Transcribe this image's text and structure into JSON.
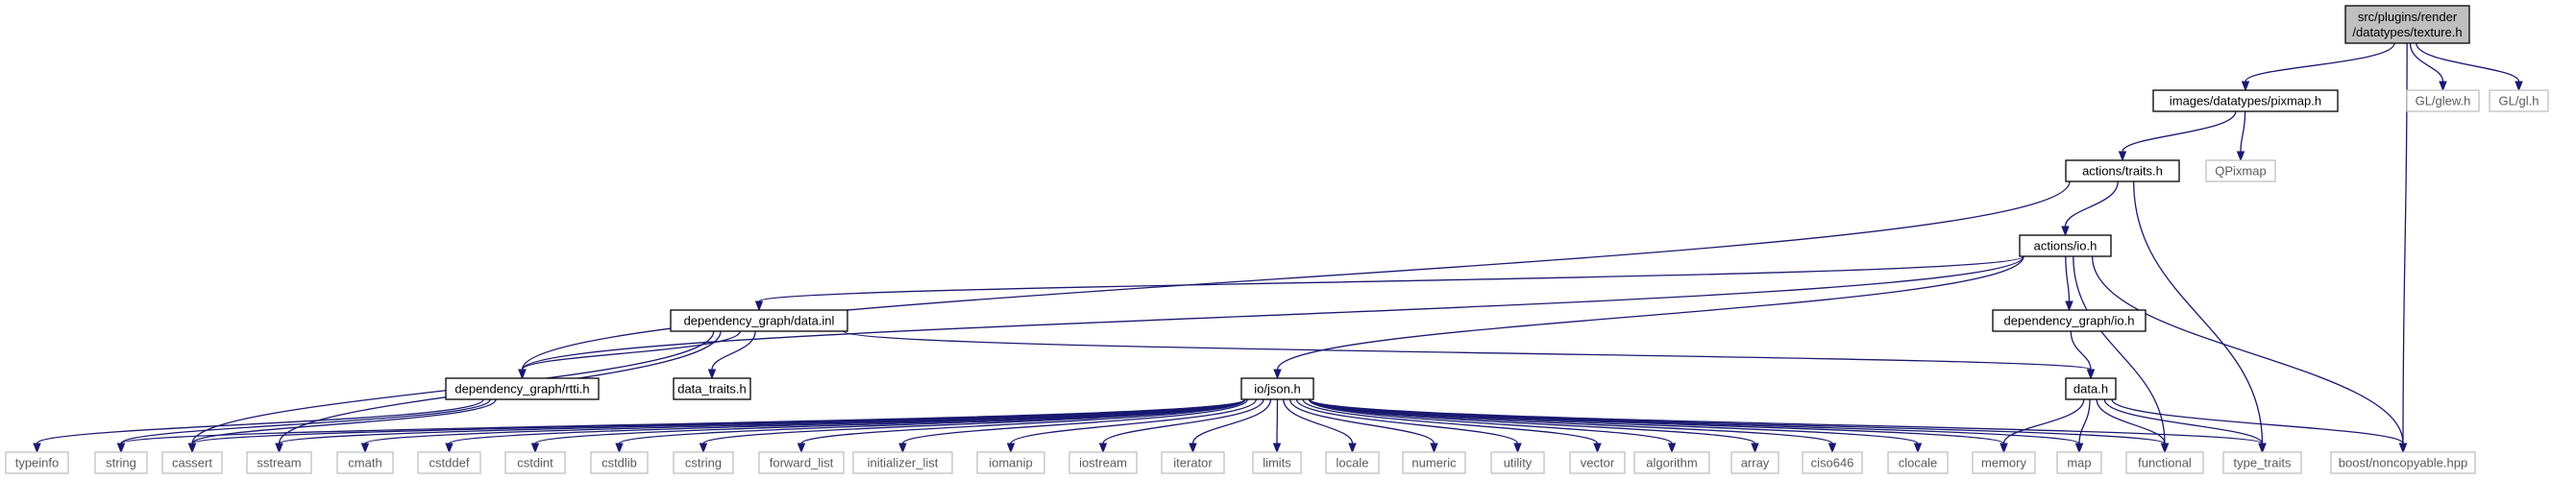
{
  "diagram": {
    "colors": {
      "edge": "#191970",
      "external_border": "#bfbfbf",
      "root_fill": "#bfbfbf",
      "node_border": "#000000"
    },
    "nodes": [
      {
        "id": "texture",
        "label": [
          "src/plugins/render",
          "/datatypes/texture.h"
        ],
        "kind": "root"
      },
      {
        "id": "pixmap",
        "label": [
          "images/datatypes/pixmap.h"
        ],
        "kind": "doc"
      },
      {
        "id": "glew",
        "label": [
          "GL/glew.h"
        ],
        "kind": "ext"
      },
      {
        "id": "gl",
        "label": [
          "GL/gl.h"
        ],
        "kind": "ext"
      },
      {
        "id": "traits",
        "label": [
          "actions/traits.h"
        ],
        "kind": "doc"
      },
      {
        "id": "qpixmap",
        "label": [
          "QPixmap"
        ],
        "kind": "ext"
      },
      {
        "id": "io",
        "label": [
          "actions/io.h"
        ],
        "kind": "doc"
      },
      {
        "id": "datainl",
        "label": [
          "dependency_graph/data.inl"
        ],
        "kind": "doc"
      },
      {
        "id": "dgio",
        "label": [
          "dependency_graph/io.h"
        ],
        "kind": "doc"
      },
      {
        "id": "rtti",
        "label": [
          "dependency_graph/rtti.h"
        ],
        "kind": "doc"
      },
      {
        "id": "datatraits",
        "label": [
          "data_traits.h"
        ],
        "kind": "doc"
      },
      {
        "id": "json",
        "label": [
          "io/json.h"
        ],
        "kind": "doc"
      },
      {
        "id": "datah",
        "label": [
          "data.h"
        ],
        "kind": "doc"
      },
      {
        "id": "typeinfo",
        "label": [
          "typeinfo"
        ],
        "kind": "ext"
      },
      {
        "id": "string",
        "label": [
          "string"
        ],
        "kind": "ext"
      },
      {
        "id": "cassert",
        "label": [
          "cassert"
        ],
        "kind": "ext"
      },
      {
        "id": "sstream",
        "label": [
          "sstream"
        ],
        "kind": "ext"
      },
      {
        "id": "cmath",
        "label": [
          "cmath"
        ],
        "kind": "ext"
      },
      {
        "id": "cstddef",
        "label": [
          "cstddef"
        ],
        "kind": "ext"
      },
      {
        "id": "cstdint",
        "label": [
          "cstdint"
        ],
        "kind": "ext"
      },
      {
        "id": "cstdlib",
        "label": [
          "cstdlib"
        ],
        "kind": "ext"
      },
      {
        "id": "cstring",
        "label": [
          "cstring"
        ],
        "kind": "ext"
      },
      {
        "id": "forward_list",
        "label": [
          "forward_list"
        ],
        "kind": "ext"
      },
      {
        "id": "initializer_list",
        "label": [
          "initializer_list"
        ],
        "kind": "ext"
      },
      {
        "id": "iomanip",
        "label": [
          "iomanip"
        ],
        "kind": "ext"
      },
      {
        "id": "iostream",
        "label": [
          "iostream"
        ],
        "kind": "ext"
      },
      {
        "id": "iterator",
        "label": [
          "iterator"
        ],
        "kind": "ext"
      },
      {
        "id": "limits",
        "label": [
          "limits"
        ],
        "kind": "ext"
      },
      {
        "id": "locale",
        "label": [
          "locale"
        ],
        "kind": "ext"
      },
      {
        "id": "numeric",
        "label": [
          "numeric"
        ],
        "kind": "ext"
      },
      {
        "id": "utility",
        "label": [
          "utility"
        ],
        "kind": "ext"
      },
      {
        "id": "vector",
        "label": [
          "vector"
        ],
        "kind": "ext"
      },
      {
        "id": "algorithm",
        "label": [
          "algorithm"
        ],
        "kind": "ext"
      },
      {
        "id": "array",
        "label": [
          "array"
        ],
        "kind": "ext"
      },
      {
        "id": "ciso646",
        "label": [
          "ciso646"
        ],
        "kind": "ext"
      },
      {
        "id": "clocale",
        "label": [
          "clocale"
        ],
        "kind": "ext"
      },
      {
        "id": "memory",
        "label": [
          "memory"
        ],
        "kind": "ext"
      },
      {
        "id": "map",
        "label": [
          "map"
        ],
        "kind": "ext"
      },
      {
        "id": "functional",
        "label": [
          "functional"
        ],
        "kind": "ext"
      },
      {
        "id": "type_traits",
        "label": [
          "type_traits"
        ],
        "kind": "ext"
      },
      {
        "id": "noncopyable",
        "label": [
          "boost/noncopyable.hpp"
        ],
        "kind": "ext"
      }
    ],
    "edges": [
      [
        "texture",
        "pixmap"
      ],
      [
        "texture",
        "glew"
      ],
      [
        "texture",
        "gl"
      ],
      [
        "texture",
        "noncopyable"
      ],
      [
        "pixmap",
        "traits"
      ],
      [
        "pixmap",
        "qpixmap"
      ],
      [
        "traits",
        "io"
      ],
      [
        "traits",
        "rtti"
      ],
      [
        "traits",
        "type_traits"
      ],
      [
        "io",
        "datainl"
      ],
      [
        "io",
        "rtti"
      ],
      [
        "io",
        "dgio"
      ],
      [
        "io",
        "json"
      ],
      [
        "io",
        "functional"
      ],
      [
        "io",
        "noncopyable"
      ],
      [
        "datainl",
        "rtti"
      ],
      [
        "datainl",
        "datatraits"
      ],
      [
        "datainl",
        "datah"
      ],
      [
        "datainl",
        "cassert"
      ],
      [
        "datainl",
        "sstream"
      ],
      [
        "dgio",
        "datah"
      ],
      [
        "rtti",
        "typeinfo"
      ],
      [
        "rtti",
        "string"
      ],
      [
        "rtti",
        "cassert"
      ],
      [
        "json",
        "string"
      ],
      [
        "json",
        "cassert"
      ],
      [
        "json",
        "sstream"
      ],
      [
        "json",
        "cmath"
      ],
      [
        "json",
        "cstddef"
      ],
      [
        "json",
        "cstdint"
      ],
      [
        "json",
        "cstdlib"
      ],
      [
        "json",
        "cstring"
      ],
      [
        "json",
        "forward_list"
      ],
      [
        "json",
        "initializer_list"
      ],
      [
        "json",
        "iomanip"
      ],
      [
        "json",
        "iostream"
      ],
      [
        "json",
        "iterator"
      ],
      [
        "json",
        "limits"
      ],
      [
        "json",
        "locale"
      ],
      [
        "json",
        "numeric"
      ],
      [
        "json",
        "utility"
      ],
      [
        "json",
        "vector"
      ],
      [
        "json",
        "algorithm"
      ],
      [
        "json",
        "array"
      ],
      [
        "json",
        "ciso646"
      ],
      [
        "json",
        "clocale"
      ],
      [
        "json",
        "memory"
      ],
      [
        "json",
        "map"
      ],
      [
        "json",
        "functional"
      ],
      [
        "json",
        "type_traits"
      ],
      [
        "datah",
        "memory"
      ],
      [
        "datah",
        "map"
      ],
      [
        "datah",
        "functional"
      ],
      [
        "datah",
        "type_traits"
      ],
      [
        "datah",
        "noncopyable"
      ]
    ]
  }
}
